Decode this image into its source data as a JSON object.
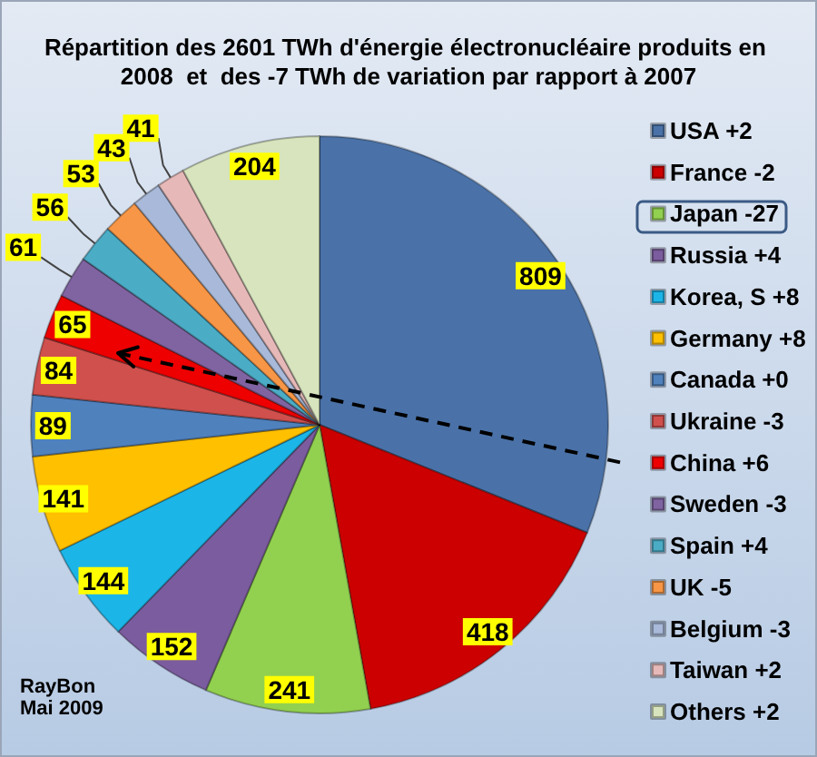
{
  "chart_data": {
    "type": "pie",
    "title": "Répartition des 2601 TWh d'énergie électronucléaire produits en 2008  et  des -7 TWh de variation par rapport à 2007",
    "categories": [
      "USA +2",
      "France -2",
      "Japan -27",
      "Russia +4",
      "Korea, S +8",
      "Germany +8",
      "Canada +0",
      "Ukraine -3",
      "China +6",
      "Sweden -3",
      "Spain +4",
      "UK -5",
      "Belgium -3",
      "Taiwan +2",
      "Others +2"
    ],
    "values": [
      809,
      418,
      241,
      152,
      144,
      141,
      89,
      84,
      65,
      61,
      56,
      53,
      43,
      41,
      204
    ],
    "colors": [
      "#4a72a8",
      "#cc0000",
      "#92d050",
      "#7b5c9e",
      "#1cb5e8",
      "#ffc000",
      "#4f81bd",
      "#d0504d",
      "#ee0000",
      "#8064a2",
      "#4bacc6",
      "#f79646",
      "#a8b9d9",
      "#e6b9b8",
      "#d7e4bd"
    ],
    "data_labels": true,
    "legend": "right",
    "annotations": [
      "RayBon",
      "Mai 2009"
    ]
  }
}
